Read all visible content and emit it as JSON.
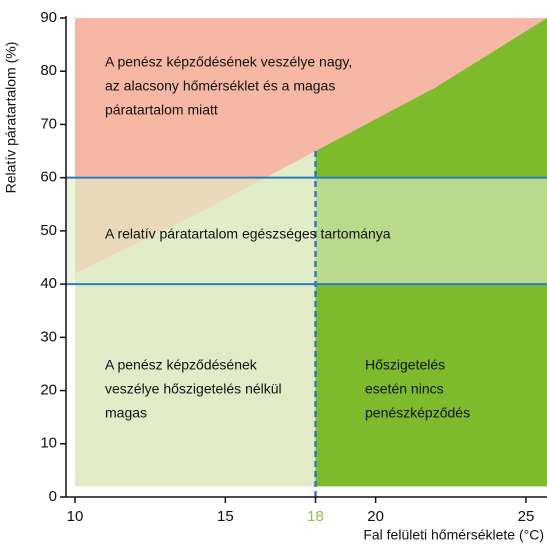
{
  "chart_data": {
    "type": "region",
    "x_label": "Fal felületi hőmérséklete (°C)",
    "y_label": "Relatív páratartalom (%)",
    "xlim": [
      9.7,
      25.7
    ],
    "ylim": [
      0,
      90
    ],
    "xticks": [
      10,
      15,
      18,
      20,
      25
    ],
    "yticks": [
      0,
      10,
      20,
      30,
      40,
      50,
      60,
      70,
      80,
      90
    ],
    "regions_bottom": 2,
    "boundary": {
      "x": [
        10,
        14,
        18,
        22,
        25.7
      ],
      "y": [
        42,
        53,
        65,
        77,
        90
      ]
    },
    "threshold": {
      "x": 18,
      "color": "#2b7cc0",
      "label_color": "#8cc04a"
    },
    "healthy_range": {
      "values": [
        40,
        60
      ],
      "color": "#2b7cc0",
      "fill": "rgba(225,238,200,0.6)"
    },
    "colors": {
      "danger": "#f6b8a4",
      "no_insulation": "#e2ebc8",
      "insulated": "#7dbb2d"
    },
    "labels": {
      "danger": [
        "A penész képződésének veszélye nagy,",
        "az alacsony hőmérséklet és a magas",
        "páratartalom miatt"
      ],
      "healthy": [
        "A relatív páratartalom egészséges tartománya"
      ],
      "no_insulation": [
        "A penész képződésének",
        "veszélye hőszigetelés nélkül",
        "magas"
      ],
      "insulated": [
        "Hőszigetelés",
        "esetén nincs",
        "penészképződés"
      ]
    }
  }
}
